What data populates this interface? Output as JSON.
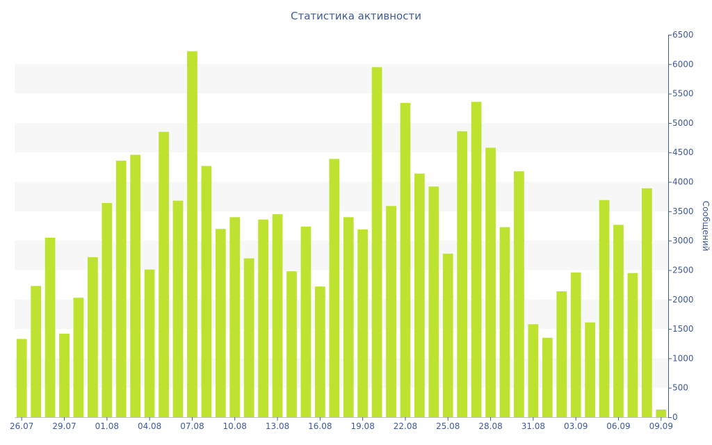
{
  "chart_data": {
    "type": "bar",
    "title": "Статистика активности",
    "xlabel": "",
    "ylabel": "Сообщений",
    "y_axis_side": "right",
    "ylim": [
      0,
      6500
    ],
    "ytick_step": 500,
    "grid": "alternating horizontal bands",
    "legend": "none",
    "bar_color": "#bde22f",
    "band_color": "#f7f7f7",
    "axis_color": "#3e5a9a",
    "categories": [
      "26.07",
      "27.07",
      "28.07",
      "29.07",
      "30.07",
      "31.07",
      "01.08",
      "02.08",
      "03.08",
      "04.08",
      "05.08",
      "06.08",
      "07.08",
      "08.08",
      "09.08",
      "10.08",
      "11.08",
      "12.08",
      "13.08",
      "14.08",
      "15.08",
      "16.08",
      "17.08",
      "18.08",
      "19.08",
      "20.08",
      "21.08",
      "22.08",
      "23.08",
      "24.08",
      "25.08",
      "26.08",
      "27.08",
      "28.08",
      "29.08",
      "30.08",
      "31.08",
      "01.09",
      "02.09",
      "03.09",
      "04.09",
      "05.09",
      "06.09",
      "07.09",
      "08.09",
      "09.09"
    ],
    "xtick_labels": [
      "26.07",
      "29.07",
      "01.08",
      "04.08",
      "07.08",
      "10.08",
      "13.08",
      "16.08",
      "19.08",
      "22.08",
      "25.08",
      "28.08",
      "31.08",
      "03.09",
      "06.09",
      "09.09"
    ],
    "values": [
      1330,
      2230,
      3050,
      1420,
      2030,
      2720,
      3640,
      4360,
      4460,
      2510,
      4850,
      3680,
      6220,
      4270,
      3200,
      3400,
      2700,
      3360,
      3450,
      2480,
      3240,
      2220,
      4390,
      3400,
      3190,
      5950,
      3590,
      5340,
      4140,
      3920,
      2780,
      4860,
      5360,
      4580,
      3230,
      4180,
      1580,
      1350,
      2140,
      2460,
      1610,
      3690,
      3270,
      2450,
      3890,
      130
    ]
  }
}
